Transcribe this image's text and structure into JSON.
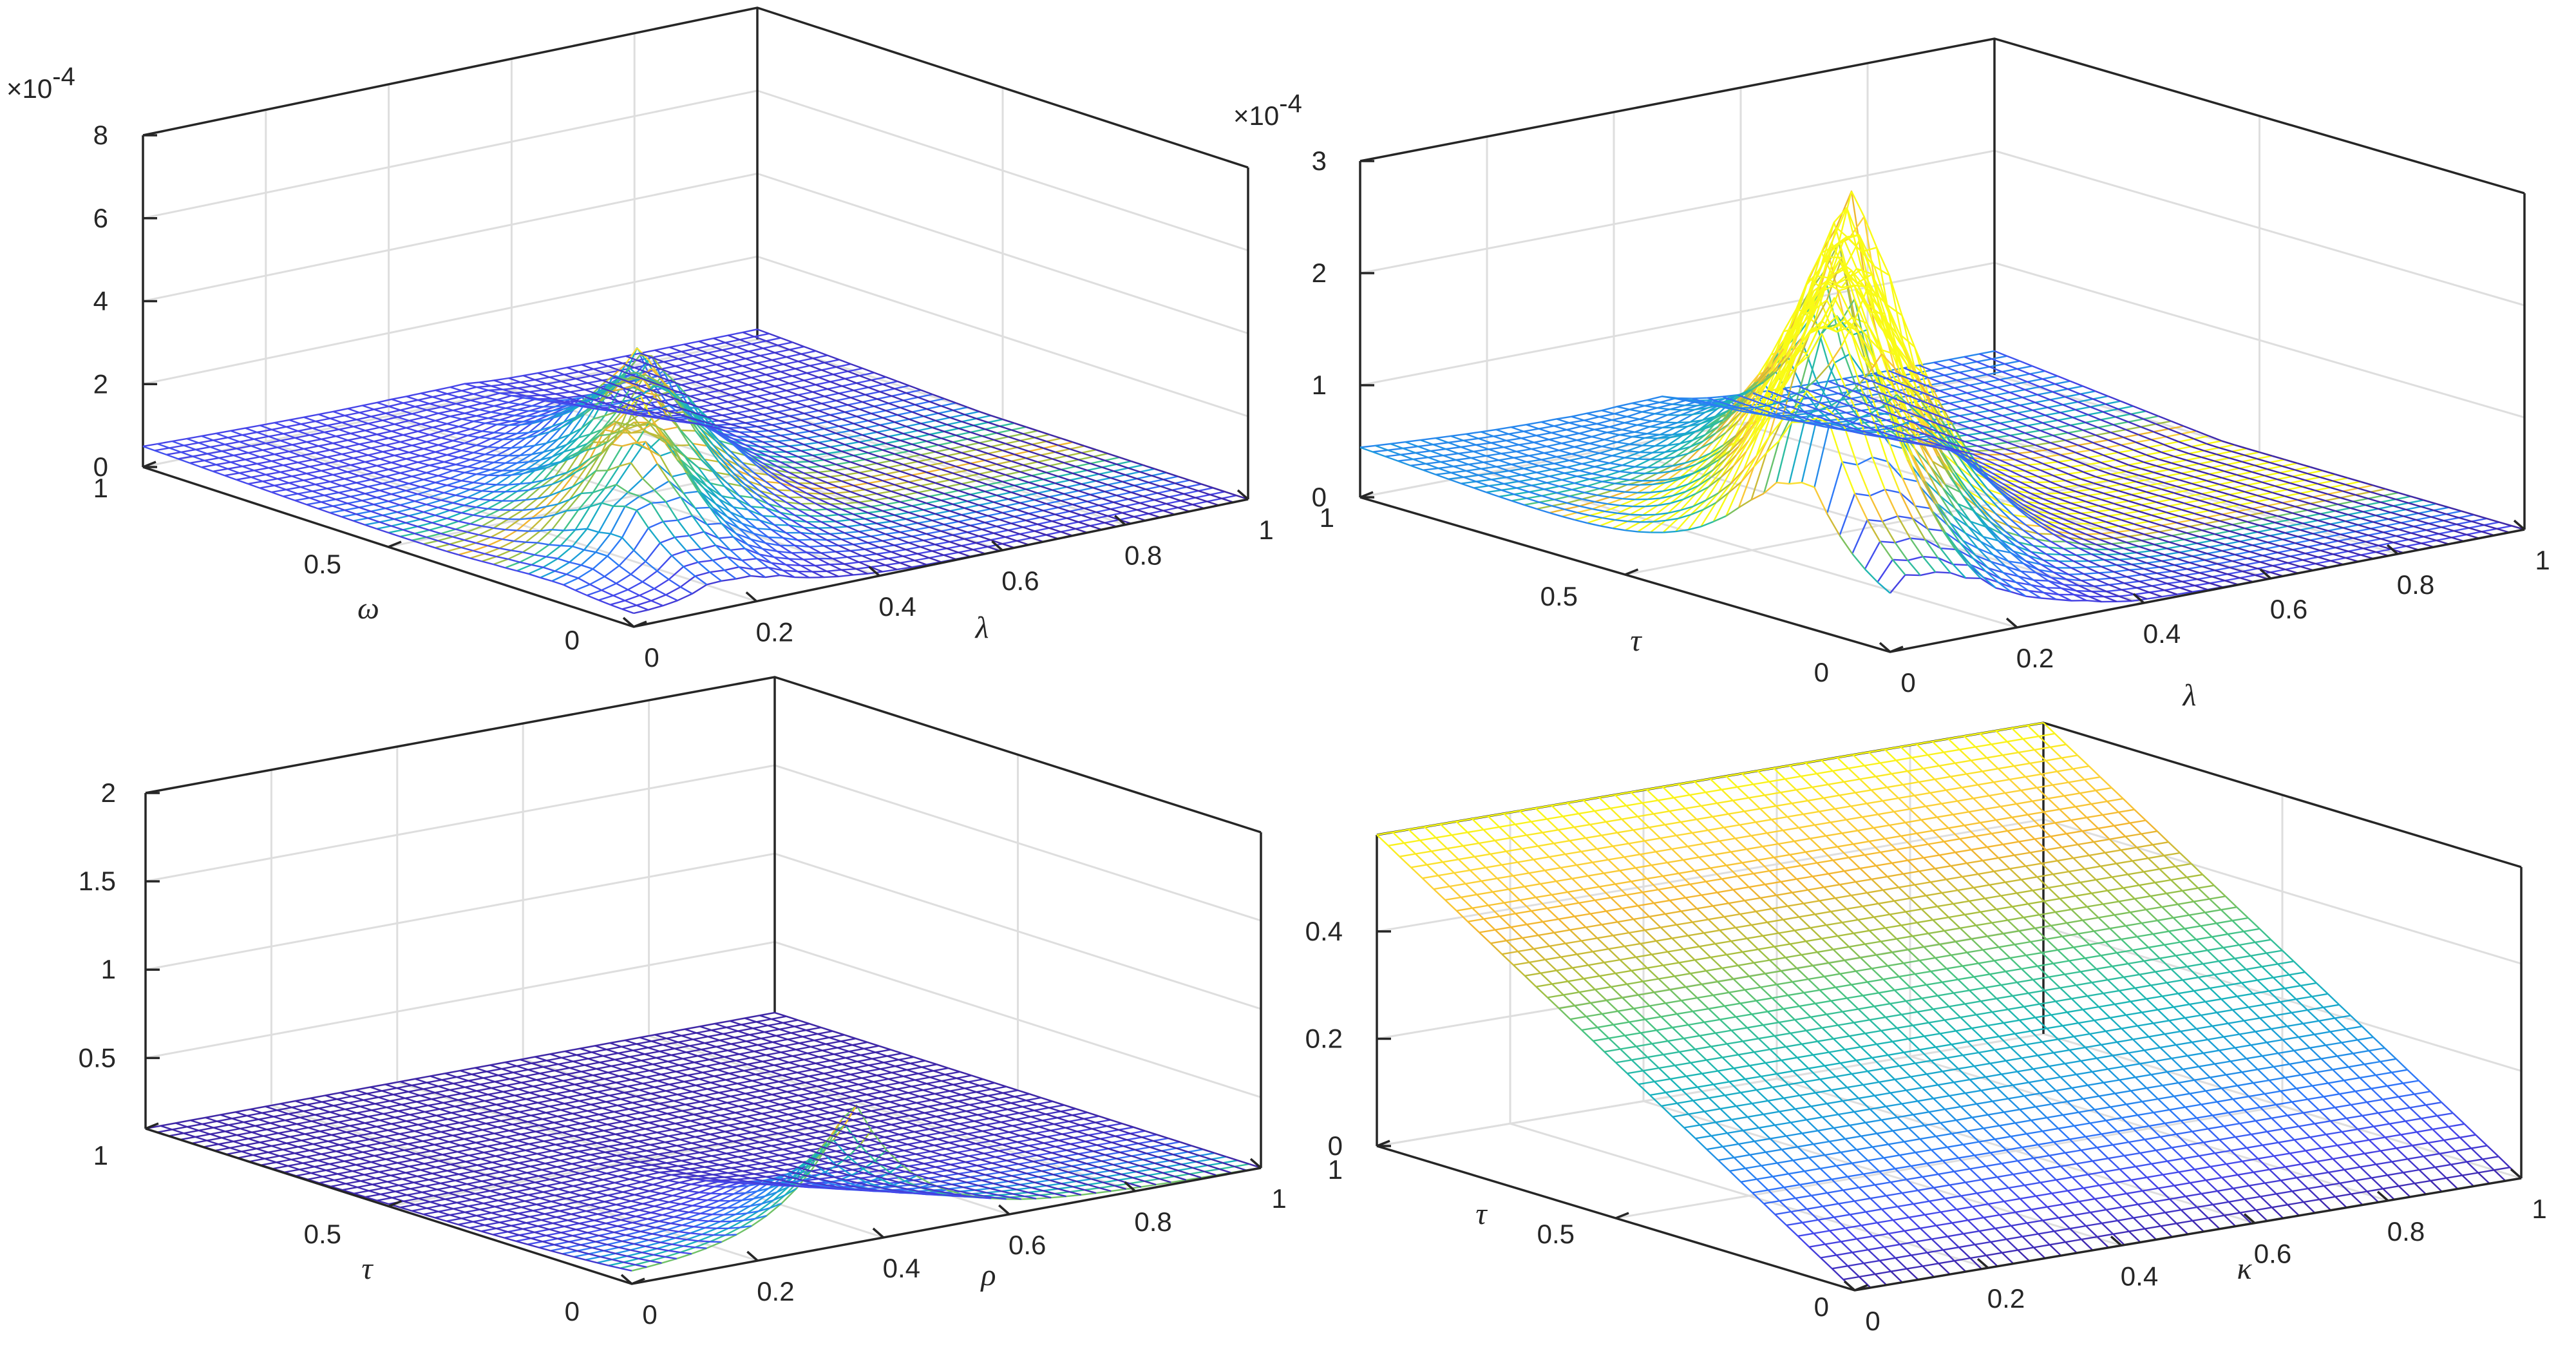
{
  "colors": {
    "axis": "#262626",
    "grid": "#dedede",
    "colormap": [
      "#3e26a8",
      "#4746eb",
      "#2f78f9",
      "#1c9eda",
      "#1ab5b8",
      "#46c485",
      "#aabf3e",
      "#f2b531",
      "#fcd23a",
      "#f9fb15"
    ]
  },
  "chart_data": [
    {
      "id": "panel-top-left",
      "type": "mesh3d",
      "exponent_label": "×10",
      "exponent_power": "-4",
      "x": {
        "label": "λ",
        "ticks": [
          "0",
          "0.2",
          "0.4",
          "0.6",
          "0.8",
          "1"
        ],
        "range": [
          0,
          1
        ]
      },
      "y": {
        "label": "ω",
        "ticks": [
          "0",
          "0.5",
          "1"
        ],
        "range": [
          0,
          1
        ]
      },
      "z": {
        "label": "",
        "ticks": [
          "0",
          "2",
          "4",
          "6",
          "8"
        ],
        "range": [
          0,
          8
        ]
      },
      "surface": {
        "kind": "spikes",
        "base": 0.0,
        "edge": 1.2,
        "spike_height": 2.9,
        "spike_x_range": [
          0.1,
          0.55
        ],
        "spike_count": 8
      }
    },
    {
      "id": "panel-top-right",
      "type": "mesh3d",
      "exponent_label": "×10",
      "exponent_power": "-4",
      "x": {
        "label": "λ",
        "ticks": [
          "0",
          "0.2",
          "0.4",
          "0.6",
          "0.8",
          "1"
        ],
        "range": [
          0,
          1
        ]
      },
      "y": {
        "label": "τ",
        "ticks": [
          "0",
          "0.5",
          "1"
        ],
        "range": [
          0,
          1
        ]
      },
      "z": {
        "label": "",
        "ticks": [
          "0",
          "1",
          "2",
          "3"
        ],
        "range": [
          0,
          3
        ]
      },
      "surface": {
        "kind": "spikes",
        "base": 0.0,
        "edge": 1.1,
        "spike_height": 2.4,
        "spike_x_range": [
          0.0,
          0.5
        ],
        "spike_count": 9
      }
    },
    {
      "id": "panel-bottom-left",
      "type": "mesh3d",
      "x": {
        "label": "ρ",
        "ticks": [
          "0",
          "0.2",
          "0.4",
          "0.6",
          "0.8",
          "1"
        ],
        "range": [
          0,
          1
        ]
      },
      "y": {
        "label": "τ",
        "ticks": [
          "0",
          "0.5",
          "1"
        ],
        "range": [
          0,
          1
        ]
      },
      "z": {
        "label": "",
        "ticks": [
          "0.5",
          "1",
          "1.5",
          "2"
        ],
        "range": [
          0.1,
          2
        ]
      },
      "surface": {
        "kind": "single-peak",
        "base": 0.1,
        "peak_height": 0.8,
        "peak_x": 0.35,
        "peak_y": 0.0
      }
    },
    {
      "id": "panel-bottom-right",
      "type": "mesh3d",
      "x": {
        "label": "κ",
        "ticks": [
          "0",
          "0.2",
          "0.4",
          "0.6",
          "0.8",
          "1"
        ],
        "range": [
          0,
          1
        ]
      },
      "y": {
        "label": "τ",
        "ticks": [
          "0",
          "0.5",
          "1"
        ],
        "range": [
          0,
          1
        ]
      },
      "z": {
        "label": "",
        "ticks": [
          "0",
          "0.2",
          "0.4"
        ],
        "range": [
          0,
          0.58
        ]
      },
      "surface": {
        "kind": "plane",
        "slope_y": 0.58,
        "offset": 0.0
      }
    }
  ]
}
